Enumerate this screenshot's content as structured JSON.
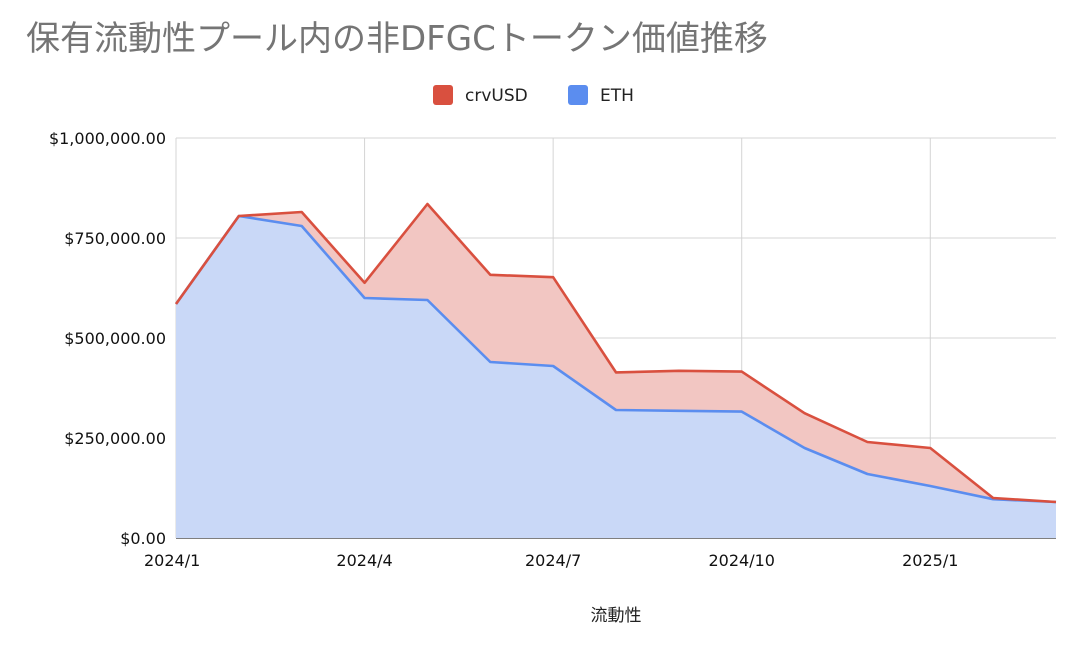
{
  "chart_data": {
    "type": "area",
    "stacked": true,
    "title": "保有流動性プール内の非DFGCトークン価値推移",
    "xlabel": "流動性",
    "ylabel": "",
    "x": [
      "2024/1",
      "2024/2",
      "2024/3",
      "2024/4",
      "2024/5",
      "2024/6",
      "2024/7",
      "2024/8",
      "2024/9",
      "2024/10",
      "2024/11",
      "2024/12",
      "2025/1",
      "2025/2",
      "2025/3"
    ],
    "x_tick_labels": [
      "2024/1",
      "2024/4",
      "2024/7",
      "2024/10",
      "2025/1"
    ],
    "ylim": [
      0,
      1000000
    ],
    "y_tick_labels": [
      "$0.00",
      "$250,000.00",
      "$500,000.00",
      "$750,000.00",
      "$1,000,000.00"
    ],
    "legend_position": "top",
    "grid": true,
    "series": [
      {
        "name": "ETH",
        "color": "#5b8def",
        "fill": "#c9d8f7",
        "values": [
          585000,
          805000,
          780000,
          600000,
          595000,
          440000,
          430000,
          320000,
          318000,
          316000,
          225000,
          160000,
          130000,
          97000,
          90000
        ]
      },
      {
        "name": "crvUSD",
        "color": "#d9503f",
        "fill": "#f2c6c2",
        "values": [
          0,
          0,
          35000,
          38000,
          240000,
          218000,
          222000,
          94000,
          100000,
          100000,
          87000,
          80000,
          95000,
          3000,
          0
        ]
      }
    ]
  }
}
